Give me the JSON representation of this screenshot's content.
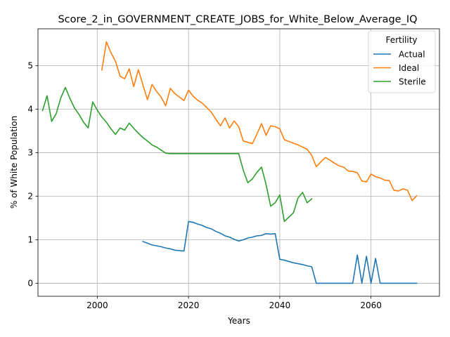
{
  "chart_data": {
    "type": "line",
    "title": "Score_2_in_GOVERNMENT_CREATE_JOBS_for_White_Below_Average_IQ",
    "xlabel": "Years",
    "ylabel": "% of White Population",
    "xlim": [
      1987,
      2075
    ],
    "ylim": [
      -0.3,
      5.85
    ],
    "xticks": [
      2000,
      2020,
      2040,
      2060
    ],
    "yticks": [
      0,
      1,
      2,
      3,
      4,
      5
    ],
    "grid": true,
    "legend": {
      "title": "Fertility",
      "position": "top-right"
    },
    "series": [
      {
        "name": "Actual",
        "color": "#1f77b4",
        "x": [
          2010,
          2011,
          2012,
          2013,
          2014,
          2015,
          2016,
          2017,
          2018,
          2019,
          2020,
          2021,
          2022,
          2023,
          2024,
          2025,
          2026,
          2027,
          2028,
          2029,
          2030,
          2031,
          2032,
          2033,
          2034,
          2035,
          2036,
          2037,
          2038,
          2039,
          2040,
          2041,
          2042,
          2043,
          2044,
          2045,
          2046,
          2047,
          2048,
          2049,
          2050,
          2051,
          2052,
          2053,
          2054,
          2055,
          2056,
          2057,
          2058,
          2059,
          2060,
          2061,
          2062,
          2063,
          2064,
          2065,
          2066,
          2067,
          2068,
          2069,
          2070
        ],
        "values": [
          0.96,
          0.92,
          0.88,
          0.86,
          0.84,
          0.81,
          0.79,
          0.76,
          0.75,
          0.74,
          1.42,
          1.4,
          1.36,
          1.33,
          1.28,
          1.25,
          1.19,
          1.15,
          1.09,
          1.06,
          1.01,
          0.97,
          1.0,
          1.04,
          1.06,
          1.09,
          1.1,
          1.14,
          1.13,
          1.14,
          0.55,
          0.53,
          0.5,
          0.47,
          0.45,
          0.43,
          0.4,
          0.38,
          0.0,
          0.0,
          0.0,
          0.0,
          0.0,
          0.0,
          0.0,
          0.0,
          0.0,
          0.65,
          0.0,
          0.62,
          0.0,
          0.57,
          0.0,
          0.0,
          0.0,
          0.0,
          0.0,
          0.0,
          0.0,
          0.0,
          0.0
        ]
      },
      {
        "name": "Ideal",
        "color": "#ff7f0e",
        "x": [
          2001,
          2002,
          2003,
          2004,
          2005,
          2006,
          2007,
          2008,
          2009,
          2010,
          2011,
          2012,
          2013,
          2014,
          2015,
          2016,
          2017,
          2018,
          2019,
          2020,
          2021,
          2022,
          2023,
          2024,
          2025,
          2026,
          2027,
          2028,
          2029,
          2030,
          2031,
          2032,
          2033,
          2034,
          2035,
          2036,
          2037,
          2038,
          2039,
          2040,
          2041,
          2042,
          2043,
          2044,
          2045,
          2046,
          2047,
          2048,
          2049,
          2050,
          2051,
          2052,
          2053,
          2054,
          2055,
          2056,
          2057,
          2058,
          2059,
          2060,
          2061,
          2062,
          2063,
          2064,
          2065,
          2066,
          2067,
          2068,
          2069,
          2070
        ],
        "values": [
          4.9,
          5.55,
          5.3,
          5.1,
          4.76,
          4.7,
          4.93,
          4.52,
          4.91,
          4.56,
          4.22,
          4.57,
          4.41,
          4.28,
          4.08,
          4.48,
          4.36,
          4.28,
          4.2,
          4.44,
          4.3,
          4.21,
          4.14,
          4.04,
          3.93,
          3.77,
          3.62,
          3.8,
          3.57,
          3.73,
          3.6,
          3.27,
          3.24,
          3.21,
          3.43,
          3.67,
          3.4,
          3.62,
          3.6,
          3.55,
          3.3,
          3.26,
          3.22,
          3.18,
          3.13,
          3.08,
          2.94,
          2.68,
          2.79,
          2.89,
          2.83,
          2.76,
          2.7,
          2.67,
          2.58,
          2.57,
          2.54,
          2.35,
          2.33,
          2.51,
          2.45,
          2.42,
          2.37,
          2.36,
          2.14,
          2.12,
          2.17,
          2.14,
          1.9,
          2.01
        ]
      },
      {
        "name": "Sterile",
        "color": "#2ca02c",
        "x": [
          1988,
          1989,
          1990,
          1991,
          1992,
          1993,
          1994,
          1995,
          1996,
          1997,
          1998,
          1999,
          2000,
          2001,
          2002,
          2003,
          2004,
          2005,
          2006,
          2007,
          2008,
          2009,
          2010,
          2011,
          2012,
          2013,
          2014,
          2015,
          2016,
          2017,
          2018,
          2019,
          2020,
          2021,
          2022,
          2023,
          2024,
          2025,
          2026,
          2027,
          2028,
          2029,
          2030,
          2031,
          2032,
          2033,
          2034,
          2035,
          2036,
          2037,
          2038,
          2039,
          2040,
          2041,
          2042,
          2043,
          2044,
          2045,
          2046,
          2047
        ],
        "values": [
          3.97,
          4.31,
          3.72,
          3.9,
          4.26,
          4.5,
          4.25,
          4.03,
          3.88,
          3.7,
          3.57,
          4.17,
          3.98,
          3.82,
          3.7,
          3.55,
          3.42,
          3.57,
          3.52,
          3.68,
          3.56,
          3.45,
          3.35,
          3.27,
          3.18,
          3.13,
          3.06,
          2.99,
          2.98,
          2.98,
          2.98,
          2.98,
          2.98,
          2.98,
          2.98,
          2.98,
          2.98,
          2.98,
          2.98,
          2.98,
          2.98,
          2.98,
          2.98,
          2.98,
          2.6,
          2.31,
          2.4,
          2.55,
          2.67,
          2.27,
          1.77,
          1.85,
          2.03,
          1.42,
          1.52,
          1.62,
          1.96,
          2.09,
          1.85,
          1.94
        ]
      }
    ]
  }
}
